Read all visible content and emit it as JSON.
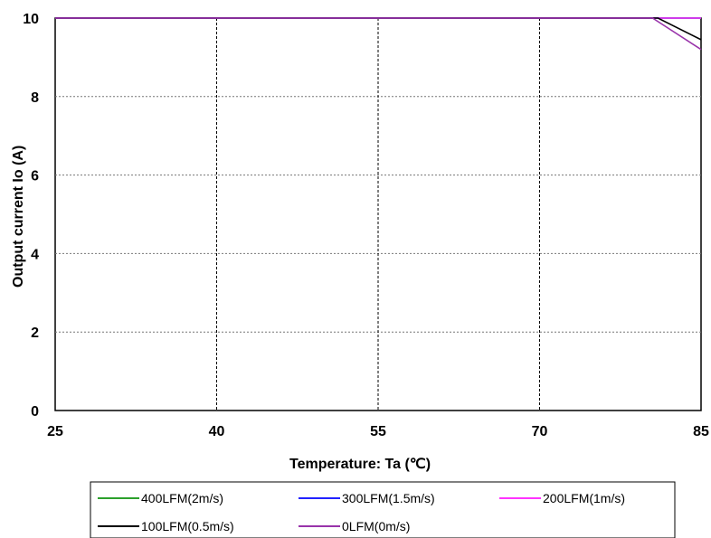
{
  "chart_data": {
    "type": "line",
    "xlabel": "Temperature: Ta (℃)",
    "ylabel": "Output current Io (A)",
    "xlim": [
      25,
      85
    ],
    "ylim": [
      0,
      10
    ],
    "xticks": [
      "25",
      "40",
      "55",
      "70",
      "85"
    ],
    "yticks": [
      "0",
      "2",
      "4",
      "6",
      "8",
      "10"
    ],
    "grid": {
      "x": "dashed",
      "y": "dashed"
    },
    "legend_position": "bottom",
    "series": [
      {
        "name": "400LFM(2m/s)",
        "color": "#2ca02c",
        "points": [
          [
            25,
            10
          ],
          [
            85,
            10
          ]
        ]
      },
      {
        "name": "300LFM(1.5m/s)",
        "color": "#2222ff",
        "points": [
          [
            25,
            10
          ],
          [
            85,
            10
          ]
        ]
      },
      {
        "name": "200LFM(1m/s)",
        "color": "#ff33ff",
        "points": [
          [
            25,
            10
          ],
          [
            85,
            10
          ]
        ]
      },
      {
        "name": "100LFM(0.5m/s)",
        "color": "#000000",
        "points": [
          [
            25,
            10
          ],
          [
            81,
            10
          ],
          [
            85,
            9.45
          ]
        ]
      },
      {
        "name": "0LFM(0m/s)",
        "color": "#9933aa",
        "points": [
          [
            25,
            10
          ],
          [
            80.5,
            10
          ],
          [
            85,
            9.2
          ]
        ]
      }
    ]
  }
}
